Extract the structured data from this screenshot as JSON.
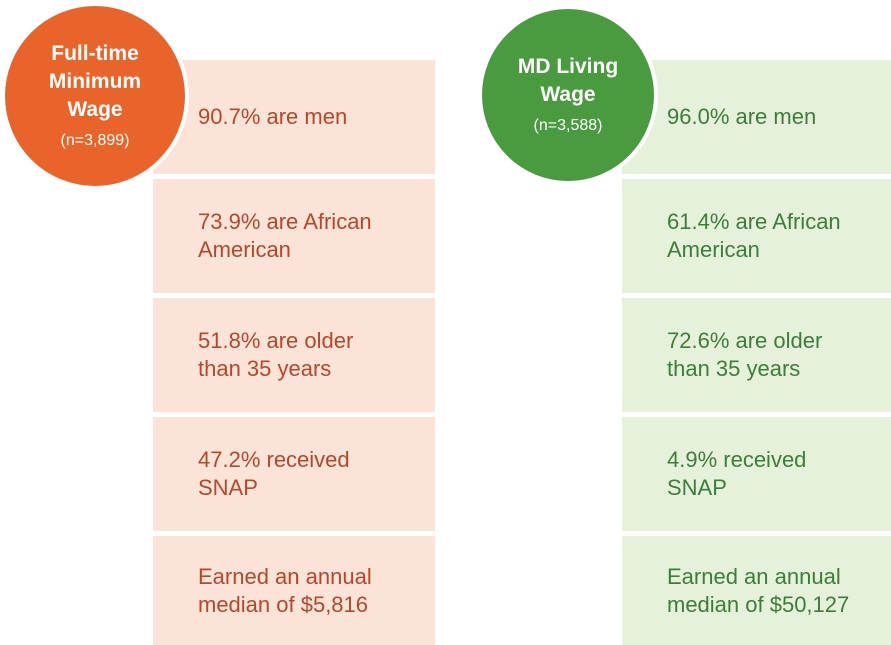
{
  "columns": [
    {
      "title": [
        "Full-time",
        "Minimum",
        "Wage"
      ],
      "n": "(n=3,899)",
      "items": [
        [
          "90.7% are men"
        ],
        [
          "73.9% are African",
          "American"
        ],
        [
          "51.8% are older",
          "than 35 years"
        ],
        [
          "47.2% received",
          "SNAP"
        ],
        [
          "Earned an annual",
          "median of $5,816"
        ]
      ]
    },
    {
      "title": [
        "MD Living",
        "Wage"
      ],
      "n": "(n=3,588)",
      "items": [
        [
          "96.0% are men"
        ],
        [
          "61.4% are African",
          "American"
        ],
        [
          "72.6% are older",
          "than 35 years"
        ],
        [
          "4.9% received",
          "SNAP"
        ],
        [
          "Earned an annual",
          "median of $50,127"
        ]
      ]
    }
  ]
}
